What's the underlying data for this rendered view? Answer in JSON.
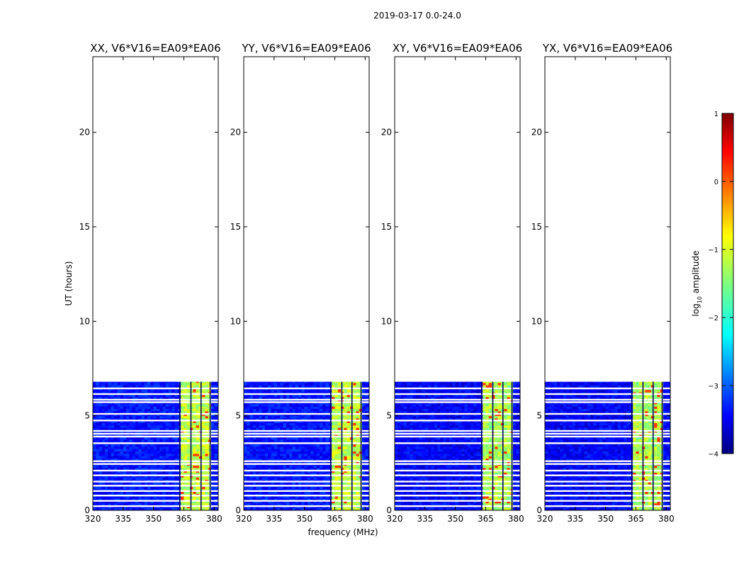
{
  "chart_data": {
    "type": "heatmap",
    "suptitle": "2019-03-17 0.0-24.0",
    "xlabel": "frequency (MHz)",
    "ylabel": "UT (hours)",
    "xlim": [
      320,
      382
    ],
    "ylim": [
      0,
      24
    ],
    "xticks": [
      320,
      335,
      350,
      365,
      380
    ],
    "yticks": [
      0,
      5,
      10,
      15,
      20
    ],
    "data_time_range_hours": [
      0,
      6.8
    ],
    "rfi_band_mhz": [
      363,
      378
    ],
    "panels": [
      {
        "title": "XX, V6*V16=EA09*EA06",
        "polarization": "XX",
        "background_log_amplitude": -3.3,
        "rfi_log_amplitude": -1.2
      },
      {
        "title": "YY, V6*V16=EA09*EA06",
        "polarization": "YY",
        "background_log_amplitude": -3.3,
        "rfi_log_amplitude": -1.2
      },
      {
        "title": "XY, V6*V16=EA09*EA06",
        "polarization": "XY",
        "background_log_amplitude": -3.4,
        "rfi_log_amplitude": -1.3
      },
      {
        "title": "YX, V6*V16=EA09*EA06",
        "polarization": "YX",
        "background_log_amplitude": -3.4,
        "rfi_log_amplitude": -1.3
      }
    ],
    "colorbar": {
      "label": "log10 amplitude",
      "label_prefix": "log",
      "label_subscript": "10",
      "label_suffix": " amplitude",
      "range": [
        -4,
        1
      ],
      "ticks": [
        "1",
        "0",
        "−1",
        "−2",
        "−3",
        "−4"
      ],
      "tick_values": [
        1,
        0,
        -1,
        -2,
        -3,
        -4
      ],
      "colormap": "jet"
    },
    "flagged_gaps_hours": [
      0.22,
      0.5,
      0.78,
      1.02,
      1.3,
      1.52,
      1.85,
      2.1,
      2.45,
      2.6,
      3.55,
      3.9,
      4.05,
      4.2,
      4.75,
      5.1,
      5.72,
      5.85,
      6.15,
      6.45
    ]
  }
}
